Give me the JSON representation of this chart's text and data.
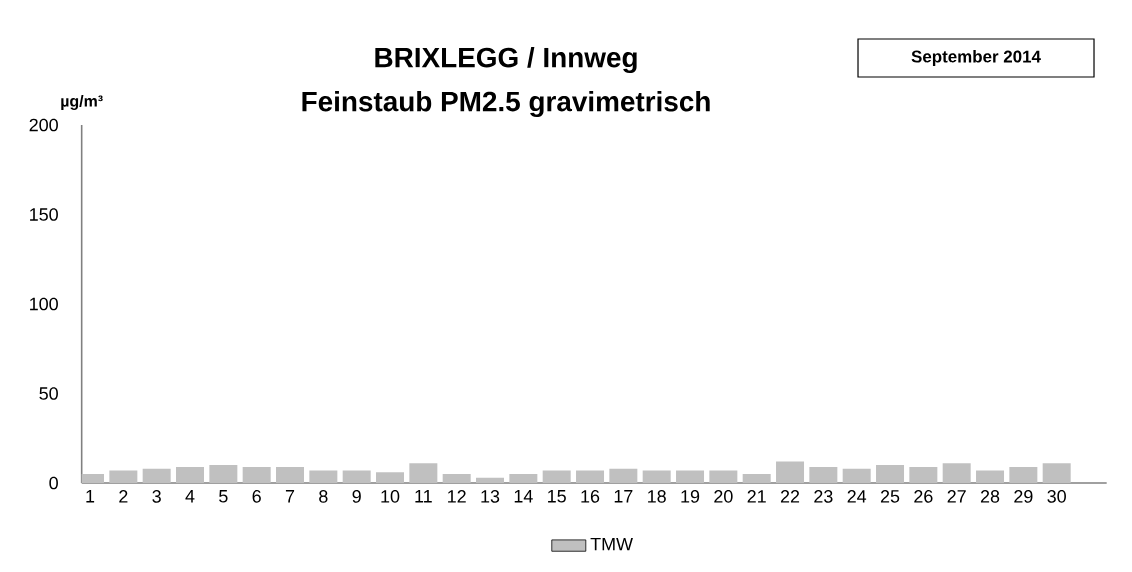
{
  "chart_data": {
    "type": "bar",
    "title": "BRIXLEGG / Innweg",
    "subtitle": "Feinstaub PM2.5 gravimetrisch",
    "ylabel": "µg/m³",
    "annotations": [
      "September 2014"
    ],
    "categories": [
      "1",
      "2",
      "3",
      "4",
      "5",
      "6",
      "7",
      "8",
      "9",
      "10",
      "11",
      "12",
      "13",
      "14",
      "15",
      "16",
      "17",
      "18",
      "19",
      "20",
      "21",
      "22",
      "23",
      "24",
      "25",
      "26",
      "27",
      "28",
      "29",
      "30"
    ],
    "series": [
      {
        "name": "TMW",
        "color": "#c0c0c0",
        "values": [
          5,
          7,
          8,
          9,
          10,
          9,
          9,
          7,
          7,
          6,
          11,
          5,
          3,
          5,
          7,
          7,
          8,
          7,
          7,
          7,
          5,
          12,
          9,
          8,
          10,
          9,
          11,
          7,
          9,
          11
        ]
      }
    ],
    "ylim": [
      0,
      200
    ],
    "yticks": [
      0,
      50,
      100,
      150,
      200
    ],
    "grid": false,
    "legend": "bottom"
  }
}
